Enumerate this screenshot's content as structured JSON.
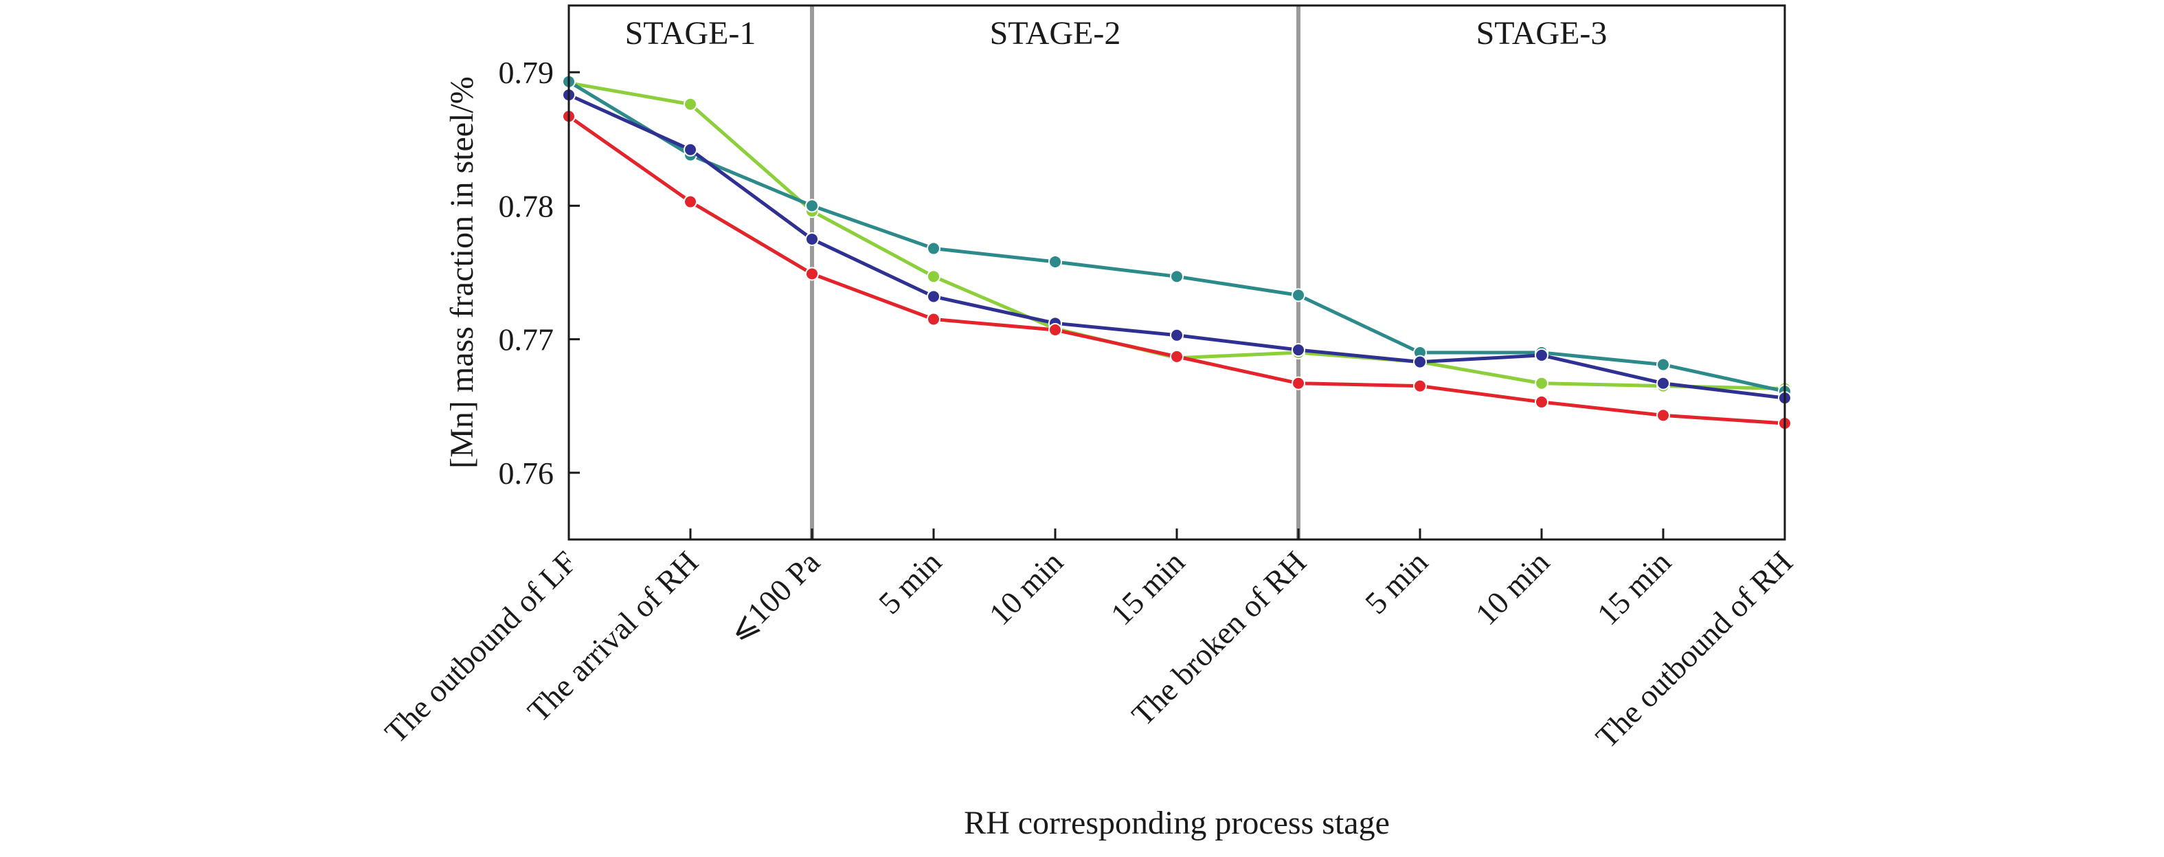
{
  "chart_data": {
    "type": "line",
    "xlabel": "RH corresponding process stage",
    "ylabel": "[Mn] mass fraction in steel/%",
    "categories": [
      "The outbound of LF",
      "The arrival of RH",
      "⩽100 Pa",
      "5 min",
      "10 min",
      "15 min",
      "The broken of RH",
      "5 min",
      "10 min",
      "15 min",
      "The outbound of RH"
    ],
    "yticks": [
      "0.76",
      "0.77",
      "0.78",
      "0.79"
    ],
    "ytick_values": [
      0.76,
      0.77,
      0.78,
      0.79
    ],
    "ylim": [
      0.755,
      0.795
    ],
    "grid": false,
    "stages": [
      {
        "label": "STAGE-1",
        "from": 0,
        "to": 2
      },
      {
        "label": "STAGE-2",
        "from": 2,
        "to": 6
      },
      {
        "label": "STAGE-3",
        "from": 6,
        "to": 10
      }
    ],
    "stage_dividers": [
      2,
      6
    ],
    "series": [
      {
        "color": "#8ccf3a",
        "values": [
          0.7892,
          0.7876,
          0.7796,
          0.7747,
          0.7708,
          0.7686,
          0.769,
          0.7683,
          0.7667,
          0.7665,
          0.7663
        ]
      },
      {
        "color": "#2d8a8a",
        "values": [
          0.7893,
          0.7838,
          0.78,
          0.7768,
          0.7758,
          0.7747,
          0.7733,
          0.769,
          0.769,
          0.7681,
          0.7661
        ]
      },
      {
        "color": "#2e3192",
        "values": [
          0.7883,
          0.7842,
          0.7775,
          0.7732,
          0.7712,
          0.7703,
          0.7692,
          0.7683,
          0.7688,
          0.7667,
          0.7656
        ]
      },
      {
        "color": "#e3242b",
        "values": [
          0.7867,
          0.7803,
          0.7749,
          0.7715,
          0.7707,
          0.7687,
          0.7667,
          0.7665,
          0.7653,
          0.7643,
          0.7637
        ]
      }
    ]
  }
}
